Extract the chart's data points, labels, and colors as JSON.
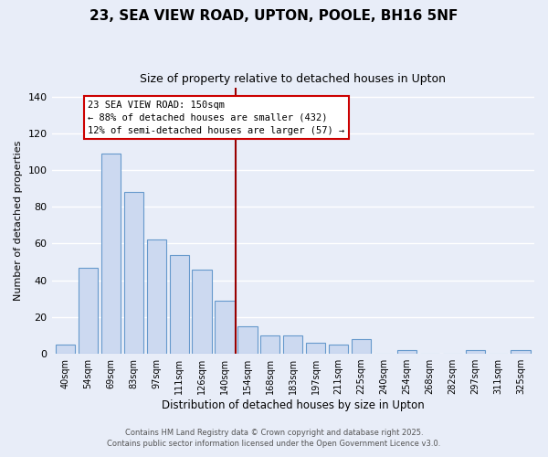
{
  "title": "23, SEA VIEW ROAD, UPTON, POOLE, BH16 5NF",
  "subtitle": "Size of property relative to detached houses in Upton",
  "xlabel": "Distribution of detached houses by size in Upton",
  "ylabel": "Number of detached properties",
  "categories": [
    "40sqm",
    "54sqm",
    "69sqm",
    "83sqm",
    "97sqm",
    "111sqm",
    "126sqm",
    "140sqm",
    "154sqm",
    "168sqm",
    "183sqm",
    "197sqm",
    "211sqm",
    "225sqm",
    "240sqm",
    "254sqm",
    "268sqm",
    "282sqm",
    "297sqm",
    "311sqm",
    "325sqm"
  ],
  "values": [
    5,
    47,
    109,
    88,
    62,
    54,
    46,
    29,
    15,
    10,
    10,
    6,
    5,
    8,
    0,
    2,
    0,
    0,
    2,
    0,
    2
  ],
  "bar_color": "#ccd9f0",
  "bar_edge_color": "#6699cc",
  "background_color": "#e8edf8",
  "grid_color": "#ffffff",
  "vline_index": 8,
  "vline_color": "#990000",
  "annotation_line1": "23 SEA VIEW ROAD: 150sqm",
  "annotation_line2": "← 88% of detached houses are smaller (432)",
  "annotation_line3": "12% of semi-detached houses are larger (57) →",
  "annotation_box_color": "#ffffff",
  "annotation_box_edge": "#cc0000",
  "ylim": [
    0,
    145
  ],
  "yticks": [
    0,
    20,
    40,
    60,
    80,
    100,
    120,
    140
  ],
  "footer1": "Contains HM Land Registry data © Crown copyright and database right 2025.",
  "footer2": "Contains public sector information licensed under the Open Government Licence v3.0."
}
